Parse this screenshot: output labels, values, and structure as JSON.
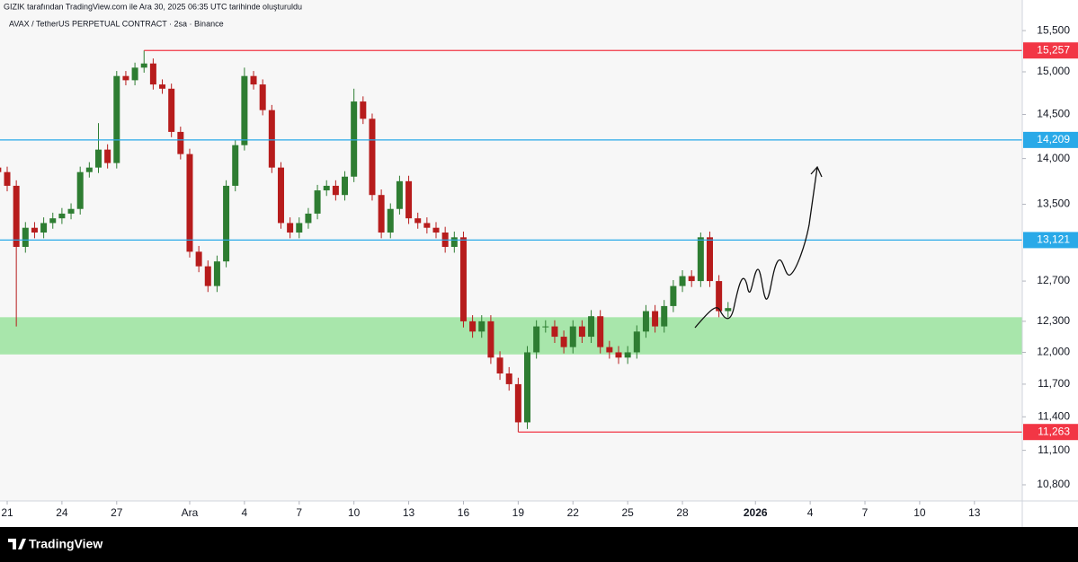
{
  "chart_data": {
    "type": "candlestick",
    "header": "GIZIK tarafından TradingView.com ile Ara 30, 2025 06:35 UTC tarihinde oluşturuldu",
    "title": "AVAX / TetherUS PERPETUAL CONTRACT · 2sa · Binance",
    "brand": "TradingView",
    "up_color": "#2e7d32",
    "down_color": "#b71c1c",
    "log_scale": true,
    "grid": false,
    "x": [
      -0.5,
      0,
      0.5,
      1,
      1.5,
      2,
      2.5,
      3,
      3.5,
      4,
      4.5,
      5,
      5.5,
      6,
      6.5,
      7,
      7.5,
      8,
      8.5,
      9,
      9.5,
      10,
      10.5,
      11,
      11.5,
      12,
      12.5,
      13,
      13.5,
      14,
      14.5,
      15,
      15.5,
      16,
      16.5,
      17,
      17.5,
      18,
      18.5,
      19,
      19.5,
      20,
      20.5,
      21,
      21.5,
      22,
      22.5,
      23,
      23.5,
      24,
      24.5,
      25,
      25.5,
      26,
      26.5,
      27,
      27.5,
      28,
      28.5,
      29,
      29.5,
      30,
      30.5,
      31,
      31.5,
      32,
      32.5,
      33,
      33.5,
      34,
      34.5,
      35,
      35.5,
      36,
      36.5,
      37,
      37.5,
      38,
      38.5,
      39,
      39.5
    ],
    "open": [
      13900,
      13850,
      13700,
      13050,
      13250,
      13200,
      13300,
      13350,
      13400,
      13450,
      13850,
      13900,
      14100,
      13950,
      14950,
      14900,
      15050,
      15100,
      14850,
      14800,
      14300,
      14050,
      13000,
      12850,
      12650,
      12900,
      13700,
      14150,
      14950,
      14850,
      14550,
      13900,
      13300,
      13200,
      13300,
      13400,
      13650,
      13700,
      13600,
      13800,
      14650,
      14450,
      13600,
      13200,
      13450,
      13750,
      13350,
      13300,
      13250,
      13200,
      13050,
      13150,
      12300,
      12200,
      12300,
      11950,
      11800,
      11700,
      11350,
      12000,
      12250,
      12250,
      12150,
      12050,
      12250,
      12150,
      12350,
      12050,
      12000,
      11950,
      12000,
      12200,
      12400,
      12250,
      12450,
      12650,
      12750,
      12700,
      13150,
      12700,
      12400
    ],
    "high": [
      13960,
      13910,
      13760,
      13310,
      13310,
      13360,
      13410,
      13460,
      13510,
      13910,
      13960,
      14400,
      14160,
      15010,
      15010,
      15110,
      15257,
      15160,
      14910,
      14860,
      14360,
      14110,
      13060,
      12910,
      12960,
      13760,
      14210,
      15050,
      15010,
      14910,
      14610,
      13960,
      13360,
      13360,
      13460,
      13710,
      13760,
      13760,
      13860,
      14800,
      14710,
      14510,
      13660,
      13510,
      13810,
      13810,
      13410,
      13360,
      13310,
      13260,
      13210,
      13210,
      12360,
      12360,
      12360,
      12010,
      11860,
      11760,
      12060,
      12310,
      12310,
      12310,
      12210,
      12310,
      12310,
      12410,
      12410,
      12110,
      12060,
      12060,
      12260,
      12460,
      12460,
      12510,
      12710,
      12810,
      12810,
      13200,
      13210,
      12760,
      12490
    ],
    "low": [
      13790,
      13640,
      12250,
      12990,
      13140,
      13140,
      13240,
      13290,
      13340,
      13390,
      13790,
      13840,
      13890,
      13890,
      14840,
      14840,
      14990,
      14790,
      14740,
      14240,
      13990,
      12940,
      12790,
      12590,
      12590,
      12840,
      13640,
      14090,
      14790,
      14490,
      13840,
      13240,
      13140,
      13140,
      13240,
      13340,
      13590,
      13540,
      13540,
      13740,
      14390,
      13540,
      13140,
      13140,
      13390,
      13290,
      13240,
      13190,
      13140,
      12990,
      12990,
      12240,
      12140,
      12140,
      11890,
      11740,
      11640,
      11263,
      11290,
      11940,
      12190,
      12090,
      11990,
      11990,
      12090,
      12090,
      11990,
      11940,
      11890,
      11890,
      11940,
      12140,
      12190,
      12190,
      12390,
      12590,
      12640,
      12640,
      12640,
      12340,
      12340
    ],
    "close": [
      13850,
      13700,
      13050,
      13250,
      13200,
      13300,
      13350,
      13400,
      13450,
      13850,
      13900,
      14100,
      13950,
      14950,
      14900,
      15050,
      15100,
      14850,
      14800,
      14300,
      14050,
      13000,
      12850,
      12650,
      12900,
      13700,
      14150,
      14950,
      14850,
      14550,
      13900,
      13300,
      13200,
      13300,
      13400,
      13650,
      13700,
      13600,
      13800,
      14650,
      14450,
      13600,
      13200,
      13450,
      13750,
      13350,
      13300,
      13250,
      13200,
      13050,
      13150,
      12300,
      12200,
      12300,
      11950,
      11800,
      11700,
      11350,
      12000,
      12250,
      12250,
      12150,
      12050,
      12250,
      12150,
      12350,
      12050,
      12000,
      11950,
      12000,
      12200,
      12400,
      12250,
      12450,
      12650,
      12750,
      12700,
      13150,
      12700,
      12400,
      12430
    ],
    "xlim": [
      -0.394,
      55.62
    ],
    "ylim": [
      10662,
      15882
    ],
    "xticks": [
      {
        "value": 0,
        "label": "21"
      },
      {
        "value": 3,
        "label": "24"
      },
      {
        "value": 6,
        "label": "27"
      },
      {
        "value": 10,
        "label": "Ara"
      },
      {
        "value": 13,
        "label": "4"
      },
      {
        "value": 16,
        "label": "7"
      },
      {
        "value": 19,
        "label": "10"
      },
      {
        "value": 22,
        "label": "13"
      },
      {
        "value": 25,
        "label": "16"
      },
      {
        "value": 28,
        "label": "19"
      },
      {
        "value": 31,
        "label": "22"
      },
      {
        "value": 34,
        "label": "25"
      },
      {
        "value": 37,
        "label": "28"
      },
      {
        "value": 41,
        "label": "2026"
      },
      {
        "value": 44,
        "label": "4"
      },
      {
        "value": 47,
        "label": "7"
      },
      {
        "value": 50,
        "label": "10"
      },
      {
        "value": 53,
        "label": "13"
      }
    ],
    "yticks": [
      {
        "value": 15500,
        "label": "15,500"
      },
      {
        "value": 15000,
        "label": "15,000"
      },
      {
        "value": 14500,
        "label": "14,500"
      },
      {
        "value": 14000,
        "label": "14,000"
      },
      {
        "value": 13500,
        "label": "13,500"
      },
      {
        "value": 12700,
        "label": "12,700"
      },
      {
        "value": 12300,
        "label": "12,300"
      },
      {
        "value": 12000,
        "label": "12,000"
      },
      {
        "value": 11700,
        "label": "11,700"
      },
      {
        "value": 11400,
        "label": "11,400"
      },
      {
        "value": 11100,
        "label": "11,100"
      },
      {
        "value": 10800,
        "label": "10,800"
      }
    ],
    "levels": [
      {
        "value": 15257,
        "label": "15,257",
        "color": "#f23645",
        "x_start": 7.5
      },
      {
        "value": 14209,
        "label": "14,209",
        "color": "#29a9e8"
      },
      {
        "value": 13121,
        "label": "13,121",
        "color": "#29a9e8"
      },
      {
        "value": 11263,
        "label": "11,263",
        "color": "#f23645",
        "x_start": 28
      }
    ],
    "zone": {
      "low": 11980,
      "high": 12340,
      "color": "#a8e6ab"
    }
  }
}
